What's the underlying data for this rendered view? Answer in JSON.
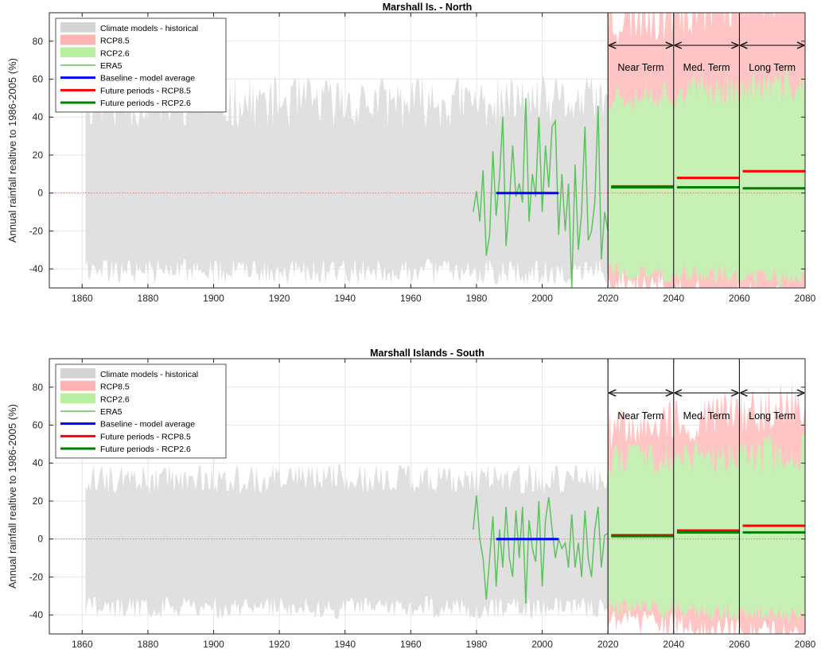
{
  "figure": {
    "ylabel": "Annual rainfall realtive to 1986-2005 (%)"
  },
  "colors": {
    "historical_band": "#e0e0e0",
    "rcp85_band": "#ffc4c4",
    "rcp26_band": "#c6f0b4",
    "era5_line": "#5cc45c",
    "baseline": "#0000ff",
    "future_rcp85": "#ff0000",
    "future_rcp26": "#008000",
    "zero_line": "#e06666",
    "grid": "#e6e6e6",
    "axis": "#262626"
  },
  "legend": [
    {
      "label": "Climate models - historical",
      "kind": "patch",
      "color": "#d4d4d4"
    },
    {
      "label": "RCP8.5",
      "kind": "patch",
      "color": "#ffb3b3"
    },
    {
      "label": "RCP2.6",
      "kind": "patch",
      "color": "#b8f0a0"
    },
    {
      "label": "ERA5",
      "kind": "thinline",
      "color": "#5cc45c"
    },
    {
      "label": "Baseline - model average",
      "kind": "line",
      "color": "#0000ff"
    },
    {
      "label": "Future periods - RCP8.5",
      "kind": "line",
      "color": "#ff0000"
    },
    {
      "label": "Future periods - RCP2.6",
      "kind": "line",
      "color": "#008000"
    }
  ],
  "chart_data": [
    {
      "type": "area",
      "title": "Marshall Is. - North",
      "ylabel": "Annual rainfall realtive to 1986-2005 (%)",
      "xlim": [
        1850,
        2080
      ],
      "ylim": [
        -50,
        95
      ],
      "xticks": [
        1860,
        1880,
        1900,
        1920,
        1940,
        1960,
        1980,
        2000,
        2020,
        2040,
        2060,
        2080
      ],
      "yticks": [
        -40,
        -20,
        0,
        20,
        40,
        60,
        80
      ],
      "grid": true,
      "legend_position": "top-left",
      "historical_band": {
        "x_range": [
          1861,
          2020
        ],
        "approx_lower": -40,
        "approx_upper": 45
      },
      "rcp85_band": {
        "x_range": [
          2020,
          2080
        ],
        "approx_lower": -45,
        "approx_upper": 90
      },
      "rcp26_band": {
        "x_range": [
          2020,
          2080
        ],
        "approx_lower": -40,
        "approx_upper": 50
      },
      "era5": {
        "x": [
          1979,
          1980,
          1981,
          1982,
          1983,
          1984,
          1985,
          1986,
          1987,
          1988,
          1989,
          1990,
          1991,
          1992,
          1993,
          1994,
          1995,
          1996,
          1997,
          1998,
          1999,
          2000,
          2001,
          2002,
          2003,
          2004,
          2005,
          2006,
          2007,
          2008,
          2009,
          2010,
          2011,
          2012,
          2013,
          2014,
          2015,
          2016,
          2017,
          2018,
          2019,
          2020
        ],
        "y": [
          -10,
          1,
          -15,
          12,
          -33,
          -22,
          22,
          -12,
          8,
          40,
          -28,
          -5,
          25,
          -2,
          5,
          -5,
          50,
          -15,
          10,
          -2,
          40,
          -10,
          25,
          3,
          35,
          38,
          -22,
          10,
          -20,
          5,
          -50,
          15,
          -30,
          -10,
          35,
          -25,
          -20,
          -5,
          46,
          -35,
          -10,
          -20
        ]
      },
      "baseline": {
        "x_range": [
          1986,
          2005
        ],
        "value": 0
      },
      "future_periods": [
        {
          "period": "Near Term",
          "x_range": [
            2021,
            2040
          ],
          "rcp85": 3.5,
          "rcp26": 3
        },
        {
          "period": "Med. Term",
          "x_range": [
            2041,
            2060
          ],
          "rcp85": 8,
          "rcp26": 3
        },
        {
          "period": "Long Term",
          "x_range": [
            2061,
            2080
          ],
          "rcp85": 11.5,
          "rcp26": 2.5
        }
      ],
      "period_labels": [
        "Near Term",
        "Med. Term",
        "Long Term"
      ]
    },
    {
      "type": "area",
      "title": "Marshall Islands - South",
      "ylabel": "Annual rainfall realtive to 1986-2005 (%)",
      "xlim": [
        1850,
        2080
      ],
      "ylim": [
        -50,
        95
      ],
      "xticks": [
        1860,
        1880,
        1900,
        1920,
        1940,
        1960,
        1980,
        2000,
        2020,
        2040,
        2060,
        2080
      ],
      "yticks": [
        -40,
        -20,
        0,
        20,
        40,
        60,
        80
      ],
      "grid": true,
      "legend_position": "top-left",
      "historical_band": {
        "x_range": [
          1861,
          2020
        ],
        "approx_lower": -35,
        "approx_upper": 30
      },
      "rcp85_band": {
        "x_range": [
          2020,
          2080
        ],
        "approx_lower": -40,
        "approx_upper": 55
      },
      "rcp26_band": {
        "x_range": [
          2020,
          2080
        ],
        "approx_lower": -35,
        "approx_upper": 40
      },
      "era5": {
        "x": [
          1979,
          1980,
          1981,
          1982,
          1983,
          1984,
          1985,
          1986,
          1987,
          1988,
          1989,
          1990,
          1991,
          1992,
          1993,
          1994,
          1995,
          1996,
          1997,
          1998,
          1999,
          2000,
          2001,
          2002,
          2003,
          2004,
          2005,
          2006,
          2007,
          2008,
          2009,
          2010,
          2011,
          2012,
          2013,
          2014,
          2015,
          2016,
          2017,
          2018,
          2019,
          2020
        ],
        "y": [
          5,
          23,
          0,
          -10,
          -32,
          -10,
          12,
          -25,
          5,
          -15,
          17,
          -10,
          -20,
          15,
          -10,
          17,
          -34,
          10,
          -5,
          -12,
          20,
          -25,
          10,
          22,
          5,
          -10,
          0,
          -5,
          -2,
          -15,
          13,
          -15,
          -2,
          -20,
          15,
          -10,
          -20,
          5,
          17,
          -15,
          2,
          3
        ]
      },
      "baseline": {
        "x_range": [
          1986,
          2005
        ],
        "value": 0
      },
      "future_periods": [
        {
          "period": "Near Term",
          "x_range": [
            2021,
            2040
          ],
          "rcp85": 2,
          "rcp26": 1.5
        },
        {
          "period": "Med. Term",
          "x_range": [
            2041,
            2060
          ],
          "rcp85": 4.5,
          "rcp26": 3.5
        },
        {
          "period": "Long Term",
          "x_range": [
            2061,
            2080
          ],
          "rcp85": 7,
          "rcp26": 3.5
        }
      ],
      "period_labels": [
        "Near Term",
        "Med. Term",
        "Long Term"
      ]
    }
  ]
}
